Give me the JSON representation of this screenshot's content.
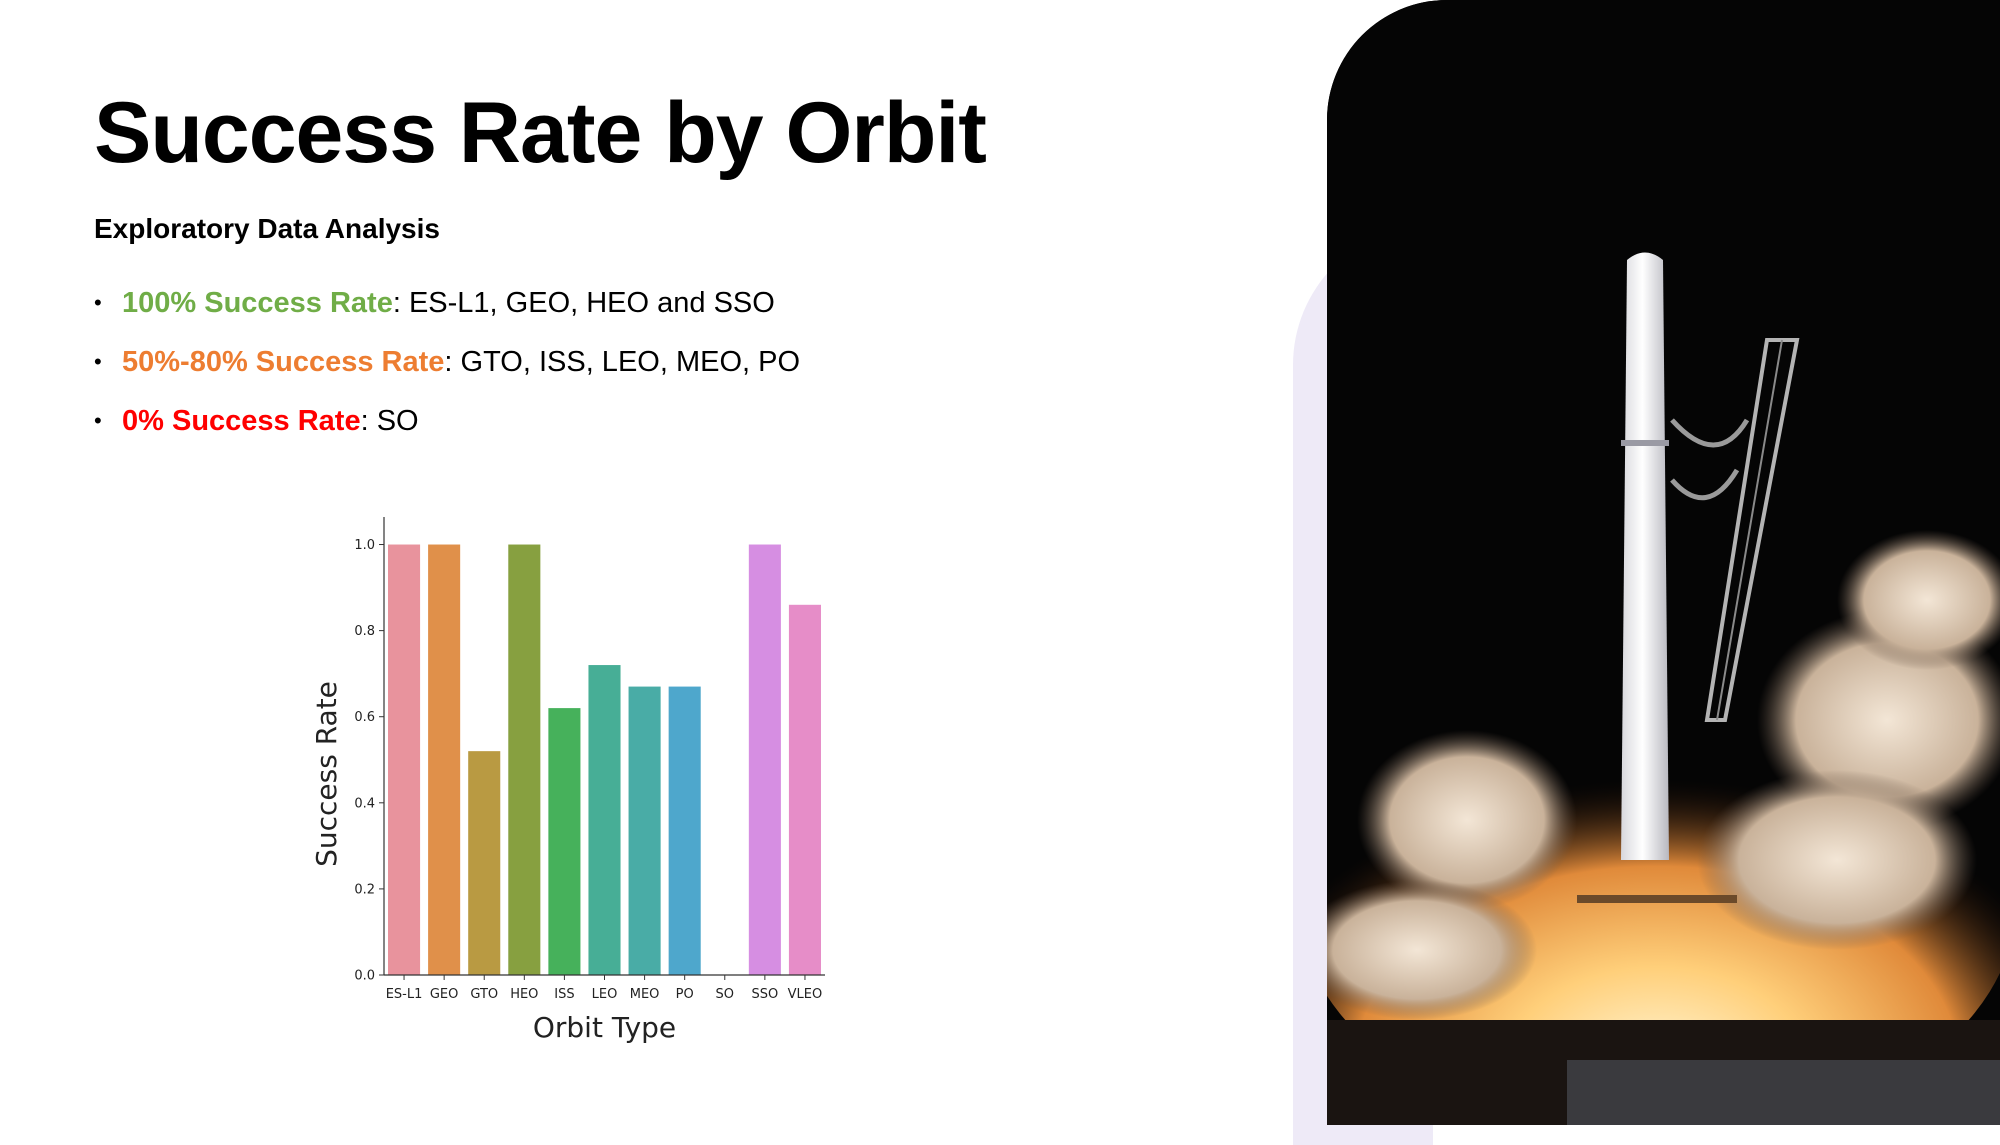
{
  "slide": {
    "title": "Success Rate by Orbit",
    "subtitle": "Exploratory Data Analysis"
  },
  "bullets": [
    {
      "highlight": "100% Success Rate",
      "rest": ": ES-L1, GEO, HEO and SSO",
      "color": "#70ad47"
    },
    {
      "highlight": "50%-80% Success Rate",
      "rest": ": GTO, ISS, LEO, MEO, PO",
      "color": "#ed7d31"
    },
    {
      "highlight": "0% Success Rate",
      "rest": ": SO",
      "color": "#ff0000"
    }
  ],
  "chart_data": {
    "type": "bar",
    "categories": [
      "ES-L1",
      "GEO",
      "GTO",
      "HEO",
      "ISS",
      "LEO",
      "MEO",
      "PO",
      "SO",
      "SSO",
      "VLEO"
    ],
    "values": [
      1.0,
      1.0,
      0.52,
      1.0,
      0.62,
      0.72,
      0.67,
      0.67,
      0.0,
      1.0,
      0.86
    ],
    "colors": [
      "#e8939d",
      "#e0904a",
      "#b99a42",
      "#87a040",
      "#46b15b",
      "#47ae96",
      "#49aca6",
      "#4ea7cc",
      "#9f8ed8",
      "#d68ee2",
      "#e68dc8"
    ],
    "xlabel": "Orbit Type",
    "ylabel": "Success Rate",
    "ylim": [
      0,
      1.05
    ],
    "yticks": [
      "0.0",
      "0.2",
      "0.4",
      "0.6",
      "0.8",
      "1.0"
    ],
    "grid": false
  },
  "photo": {
    "icon": "rocket-launch-photo"
  }
}
